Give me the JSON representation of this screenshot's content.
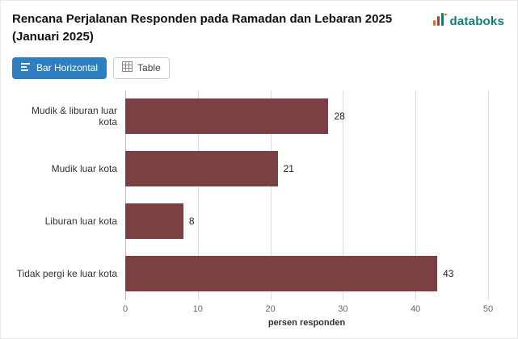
{
  "header": {
    "title": "Rencana Perjalanan Responden pada Ramadan dan Lebaran 2025 (Januari 2025)",
    "brand": "databoks"
  },
  "toolbar": {
    "bar_button_label": "Bar Horizontal",
    "table_button_label": "Table"
  },
  "icons": {
    "bar_button": "bars-horizontal-icon",
    "table_button": "table-grid-icon",
    "brand": "databoks-chart-icon"
  },
  "colors": {
    "accent_button": "#2d7fc2",
    "bar": "#7b4042",
    "brand_text": "#0e7d74",
    "gridline": "#dddddd"
  },
  "chart_data": {
    "type": "bar",
    "orientation": "horizontal",
    "title": "Rencana Perjalanan Responden pada Ramadan dan Lebaran 2025 (Januari 2025)",
    "categories": [
      "Mudik & liburan luar kota",
      "Mudik luar kota",
      "Liburan luar kota",
      "Tidak pergi ke luar kota"
    ],
    "values": [
      28,
      21,
      8,
      43
    ],
    "xlabel": "persen responden",
    "ylabel": "",
    "xlim": [
      0,
      50
    ],
    "xticks": [
      0,
      10,
      20,
      30,
      40,
      50
    ],
    "bar_color": "#7b4042",
    "grid": true,
    "legend": false
  }
}
